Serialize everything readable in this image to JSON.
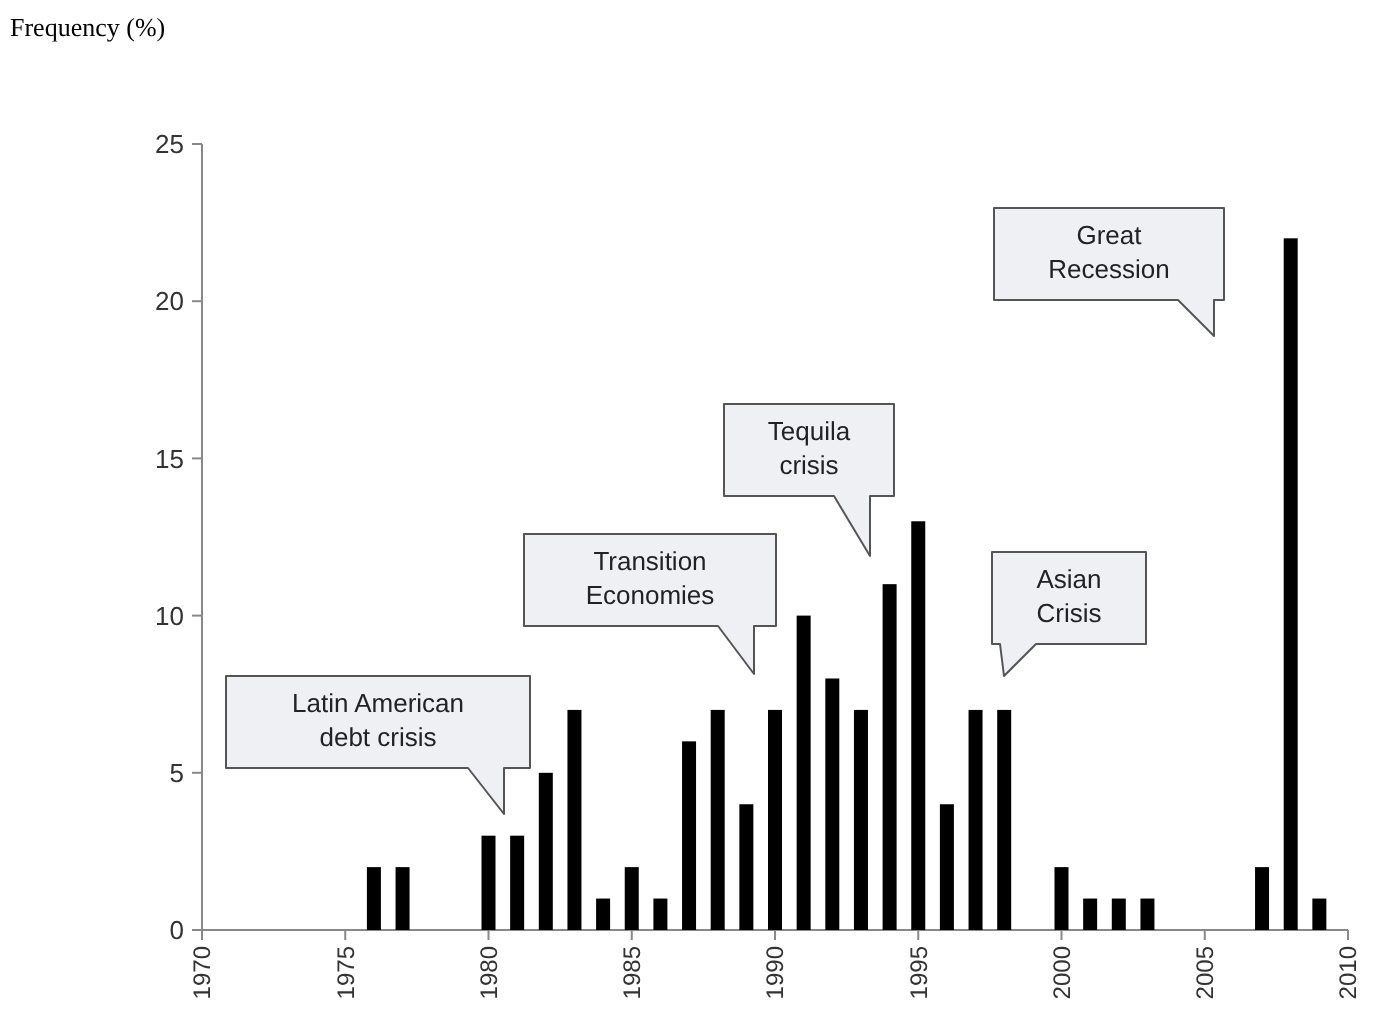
{
  "chart_data": {
    "type": "bar",
    "ylabel": "Frequency (%)",
    "x": [
      1976,
      1977,
      1980,
      1981,
      1982,
      1983,
      1984,
      1985,
      1986,
      1987,
      1988,
      1989,
      1990,
      1991,
      1992,
      1993,
      1994,
      1995,
      1996,
      1997,
      1998,
      2000,
      2001,
      2002,
      2003,
      2007,
      2008,
      2009
    ],
    "values": [
      2,
      2,
      3,
      3,
      5,
      7,
      1,
      2,
      1,
      6,
      7,
      4,
      7,
      10,
      8,
      7,
      11,
      13,
      4,
      7,
      7,
      2,
      1,
      1,
      1,
      2,
      22,
      1
    ],
    "color": "#000000",
    "xlim": [
      1970,
      2010
    ],
    "xticks": [
      1970,
      1975,
      1980,
      1985,
      1990,
      1995,
      2000,
      2005,
      2010
    ],
    "ylim": [
      0,
      25
    ],
    "yticks": [
      0,
      5,
      10,
      15,
      20,
      25
    ],
    "grid": false,
    "annotations": [
      "Latin American debt crisis",
      "Transition Economies",
      "Tequila crisis",
      "Asian Crisis",
      "Great Recession"
    ]
  }
}
